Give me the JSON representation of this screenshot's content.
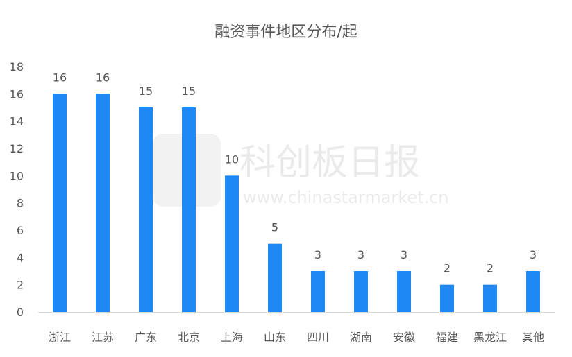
{
  "chart_data": {
    "type": "bar",
    "title": "融资事件地区分布/起",
    "categories": [
      "浙江",
      "江苏",
      "广东",
      "北京",
      "上海",
      "山东",
      "四川",
      "湖南",
      "安徽",
      "福建",
      "黑龙江",
      "其他"
    ],
    "values": [
      16,
      16,
      15,
      15,
      10,
      5,
      3,
      3,
      3,
      2,
      2,
      3
    ],
    "xlabel": "",
    "ylabel": "",
    "ylim": [
      0,
      18
    ],
    "yticks": [
      0,
      2,
      4,
      6,
      8,
      10,
      12,
      14,
      16,
      18
    ],
    "grid": false,
    "legend": "none",
    "bar_color": "#1E88F5"
  },
  "watermark": {
    "name": "科创板日报",
    "url": "www.chinastarmarket.cn"
  }
}
